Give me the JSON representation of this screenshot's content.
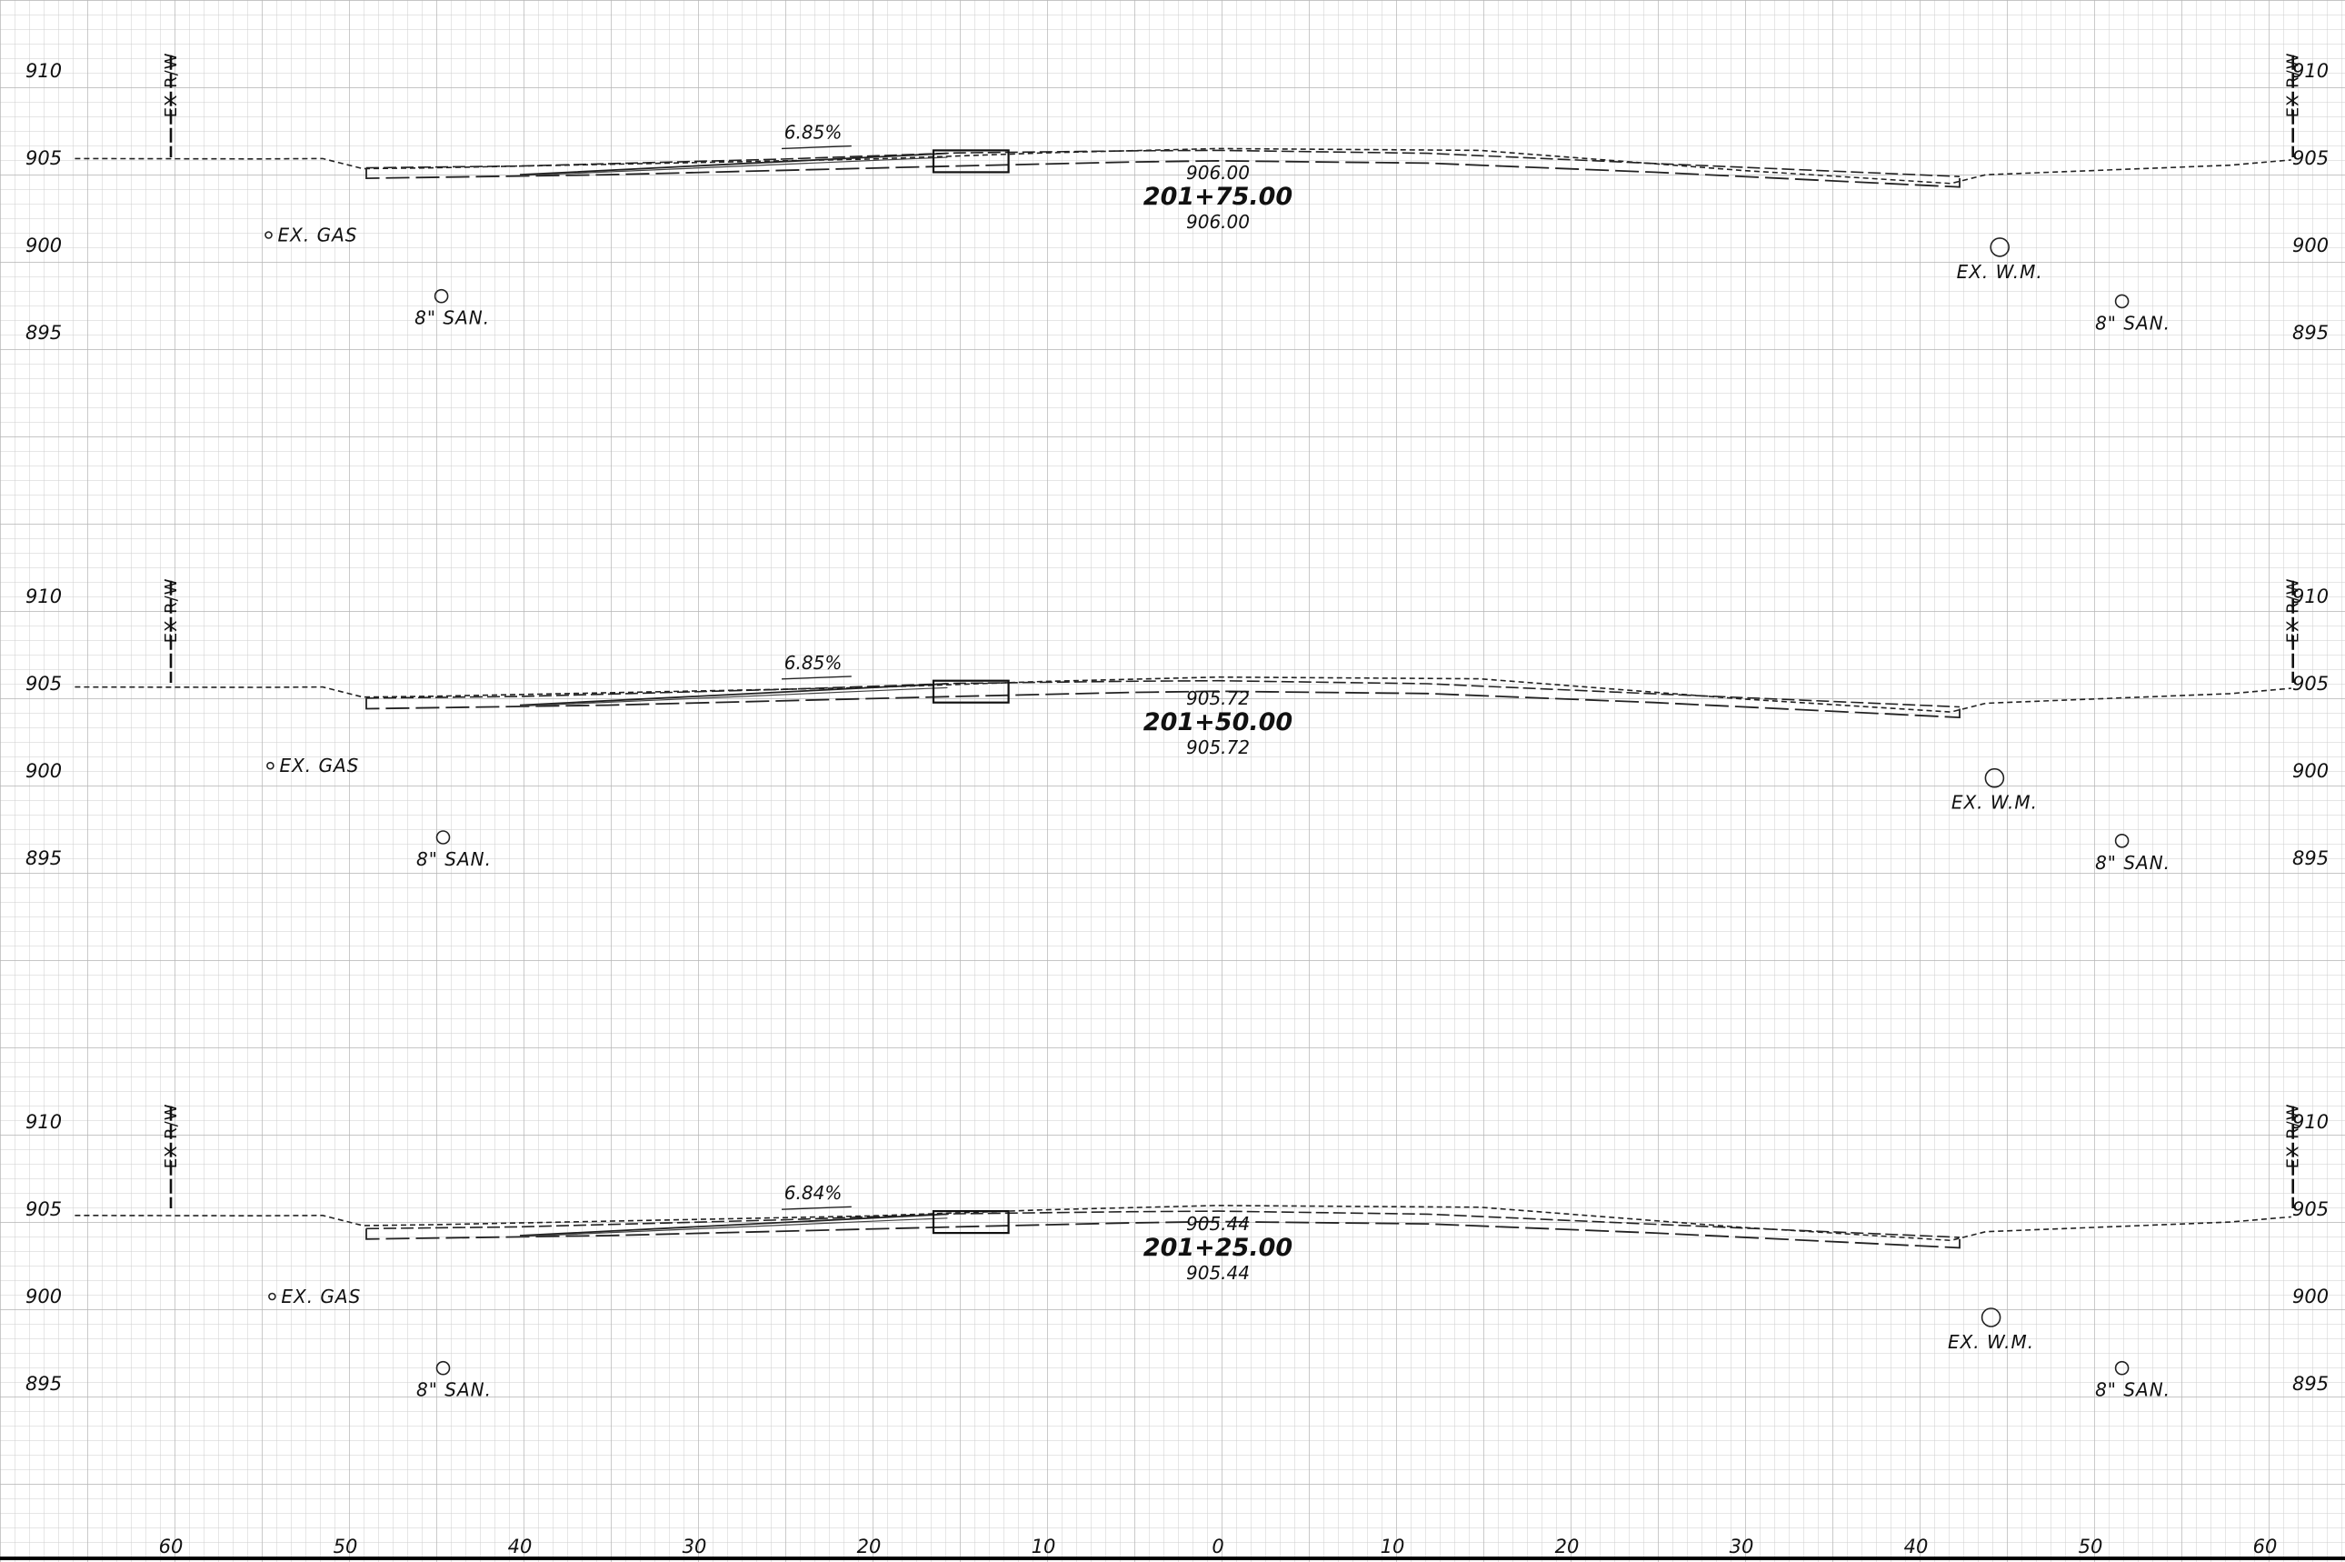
{
  "sheet": {
    "offset_axis": {
      "ticks": [
        -60,
        -50,
        -40,
        -30,
        -20,
        -10,
        0,
        10,
        20,
        30,
        40,
        50,
        60
      ],
      "labels": [
        "60",
        "50",
        "40",
        "30",
        "20",
        "10",
        "0",
        "10",
        "20",
        "30",
        "40",
        "50",
        "60"
      ]
    },
    "elevation_axis": {
      "ticks": [
        910,
        905,
        900,
        895
      ],
      "labels": [
        "910",
        "905",
        "900",
        "895"
      ]
    }
  },
  "sections": [
    {
      "id": "201+75",
      "station": "201+75.00",
      "pgl_top": "906.00",
      "pgl_bottom": "906.00",
      "grade": "6.85%",
      "rw_left_label": "EX R/W",
      "rw_right_label": "EX R/W",
      "utilities": [
        {
          "label": "EX. GAS",
          "offset": -54.4,
          "elev": 900.6,
          "size": "small"
        },
        {
          "label": "8\" SAN.",
          "offset": -44.5,
          "elev": 897.1,
          "size": "medium"
        },
        {
          "label": "EX. W.M.",
          "offset": 44.8,
          "elev": 899.9,
          "size": "large"
        },
        {
          "label": "8\" SAN.",
          "offset": 51.8,
          "elev": 896.8,
          "size": "medium"
        }
      ]
    },
    {
      "id": "201+50",
      "station": "201+50.00",
      "pgl_top": "905.72",
      "pgl_bottom": "905.72",
      "grade": "6.85%",
      "rw_left_label": "EX R/W",
      "rw_right_label": "EX R/W",
      "utilities": [
        {
          "label": "EX. GAS",
          "offset": -54.3,
          "elev": 900.3,
          "size": "small"
        },
        {
          "label": "8\" SAN.",
          "offset": -44.4,
          "elev": 896.2,
          "size": "medium"
        },
        {
          "label": "EX. W.M.",
          "offset": 44.5,
          "elev": 899.6,
          "size": "large"
        },
        {
          "label": "8\" SAN.",
          "offset": 51.8,
          "elev": 896.0,
          "size": "medium"
        }
      ]
    },
    {
      "id": "201+25",
      "station": "201+25.00",
      "pgl_top": "905.44",
      "pgl_bottom": "905.44",
      "grade": "6.84%",
      "rw_left_label": "EX R/W",
      "rw_right_label": "EX R/W",
      "utilities": [
        {
          "label": "EX. GAS",
          "offset": -54.2,
          "elev": 900.0,
          "size": "small"
        },
        {
          "label": "8\" SAN.",
          "offset": -44.4,
          "elev": 895.9,
          "size": "medium"
        },
        {
          "label": "EX. W.M.",
          "offset": 44.3,
          "elev": 898.8,
          "size": "large"
        },
        {
          "label": "8\" SAN.",
          "offset": 51.8,
          "elev": 895.9,
          "size": "medium"
        }
      ]
    }
  ]
}
